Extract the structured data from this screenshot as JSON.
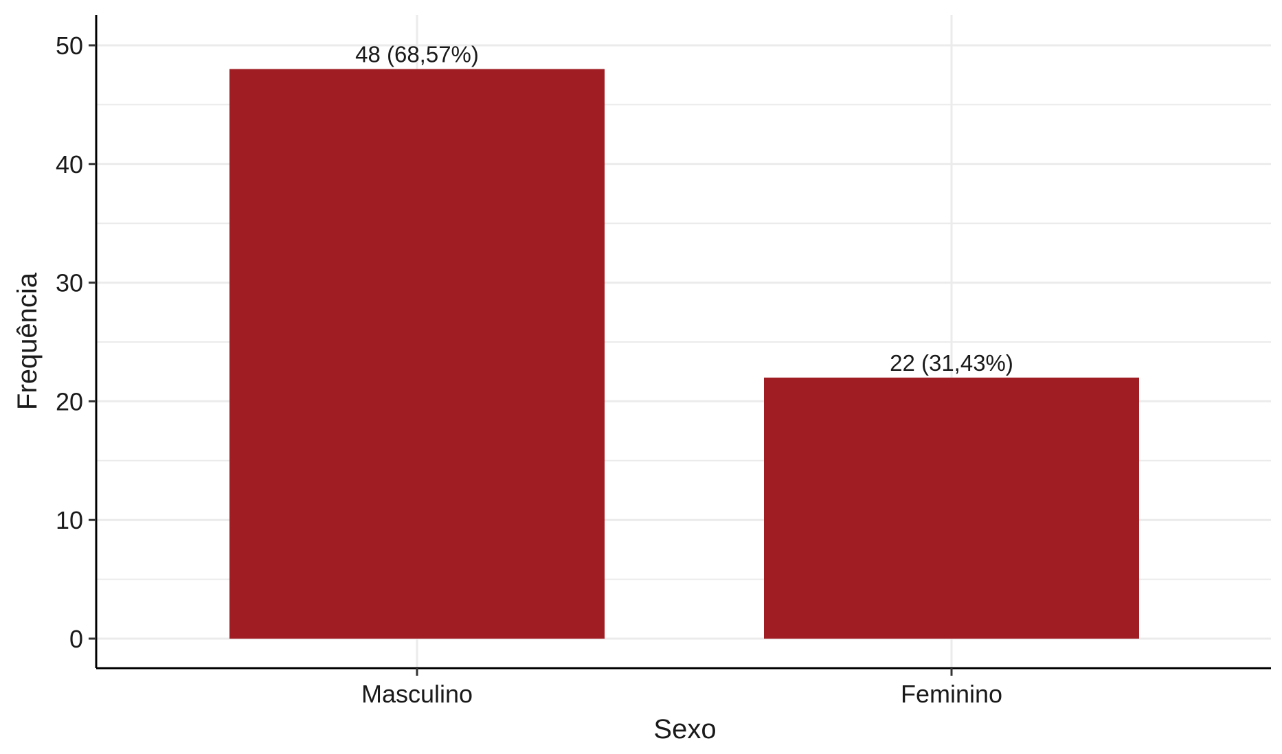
{
  "chart_data": {
    "type": "bar",
    "categories": [
      "Masculino",
      "Feminino"
    ],
    "values": [
      48,
      22
    ],
    "data_labels": [
      "48 (68,57%)",
      "22 (31,43%)"
    ],
    "title": "",
    "xlabel": "Sexo",
    "ylabel": "Frequência",
    "ylim": [
      0,
      50
    ],
    "yticks": [
      0,
      10,
      20,
      30,
      40,
      50
    ],
    "ytick_labels": [
      "0",
      "10",
      "20",
      "30",
      "40",
      "50"
    ],
    "grid": true,
    "legend": "none",
    "bar_color": "#A01D23",
    "grid_color": "#EBEBEB",
    "axis_color": "#000000"
  }
}
